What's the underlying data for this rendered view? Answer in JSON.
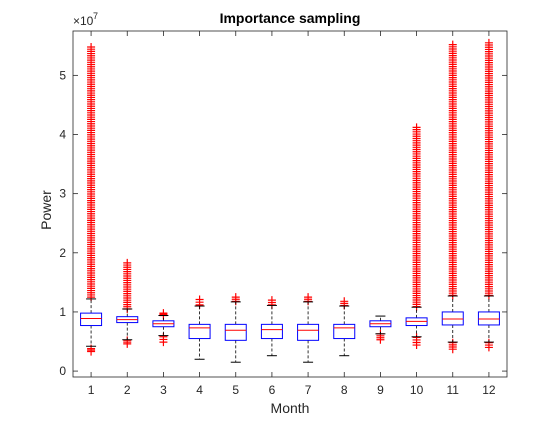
{
  "chart_data": {
    "type": "boxplot",
    "title": "Importance sampling",
    "xlabel": "Month",
    "ylabel": "Power",
    "exponent_label": "×10",
    "exponent_power": "7",
    "categories": [
      "1",
      "2",
      "3",
      "4",
      "5",
      "6",
      "7",
      "8",
      "9",
      "10",
      "11",
      "12"
    ],
    "yticks": [
      0,
      1,
      2,
      3,
      4,
      5
    ],
    "ylim": [
      -0.1,
      5.75
    ],
    "xlim": [
      0.5,
      12.5
    ],
    "units_scale": 10000000,
    "box_color": "#0000ff",
    "median_color": "#ff0000",
    "whisker_color": "#000000",
    "outlier_color": "#ff0000",
    "boxes": [
      {
        "month": "1",
        "whisker_low": 0.42,
        "q1": 0.77,
        "median": 0.89,
        "q3": 0.98,
        "whisker_high": 1.22,
        "outliers": [
          [
            1.25,
            5.48
          ],
          [
            0.33,
            0.38
          ]
        ]
      },
      {
        "month": "2",
        "whisker_low": 0.53,
        "q1": 0.82,
        "median": 0.87,
        "q3": 0.92,
        "whisker_high": 1.05,
        "outliers": [
          [
            1.05,
            1.83
          ],
          [
            0.46,
            0.52
          ]
        ]
      },
      {
        "month": "3",
        "whisker_low": 0.6,
        "q1": 0.75,
        "median": 0.8,
        "q3": 0.85,
        "whisker_high": 0.94,
        "outliers": [
          [
            0.94,
            0.98
          ],
          [
            0.49,
            0.58
          ]
        ]
      },
      {
        "month": "4",
        "whisker_low": 0.2,
        "q1": 0.55,
        "median": 0.73,
        "q3": 0.79,
        "whisker_high": 1.1,
        "outliers": [
          [
            1.12,
            1.21
          ]
        ]
      },
      {
        "month": "5",
        "whisker_low": 0.15,
        "q1": 0.52,
        "median": 0.69,
        "q3": 0.79,
        "whisker_high": 1.17,
        "outliers": [
          [
            1.18,
            1.25
          ]
        ]
      },
      {
        "month": "6",
        "whisker_low": 0.26,
        "q1": 0.55,
        "median": 0.7,
        "q3": 0.79,
        "whisker_high": 1.11,
        "outliers": [
          [
            1.12,
            1.2
          ]
        ]
      },
      {
        "month": "7",
        "whisker_low": 0.15,
        "q1": 0.52,
        "median": 0.69,
        "q3": 0.79,
        "whisker_high": 1.17,
        "outliers": [
          [
            1.18,
            1.25
          ]
        ]
      },
      {
        "month": "8",
        "whisker_low": 0.26,
        "q1": 0.55,
        "median": 0.73,
        "q3": 0.79,
        "whisker_high": 1.1,
        "outliers": [
          [
            1.11,
            1.18
          ]
        ]
      },
      {
        "month": "9",
        "whisker_low": 0.63,
        "q1": 0.75,
        "median": 0.8,
        "q3": 0.85,
        "whisker_high": 0.93,
        "outliers": [
          [
            0.53,
            0.63
          ]
        ]
      },
      {
        "month": "10",
        "whisker_low": 0.58,
        "q1": 0.77,
        "median": 0.84,
        "q3": 0.9,
        "whisker_high": 1.08,
        "outliers": [
          [
            1.09,
            4.12
          ],
          [
            0.44,
            0.57
          ]
        ]
      },
      {
        "month": "11",
        "whisker_low": 0.49,
        "q1": 0.78,
        "median": 0.88,
        "q3": 1.0,
        "whisker_high": 1.27,
        "outliers": [
          [
            1.28,
            5.52
          ],
          [
            0.37,
            0.48
          ]
        ]
      },
      {
        "month": "12",
        "whisker_low": 0.49,
        "q1": 0.78,
        "median": 0.88,
        "q3": 1.0,
        "whisker_high": 1.27,
        "outliers": [
          [
            1.28,
            5.55
          ],
          [
            0.4,
            0.48
          ]
        ]
      }
    ]
  }
}
